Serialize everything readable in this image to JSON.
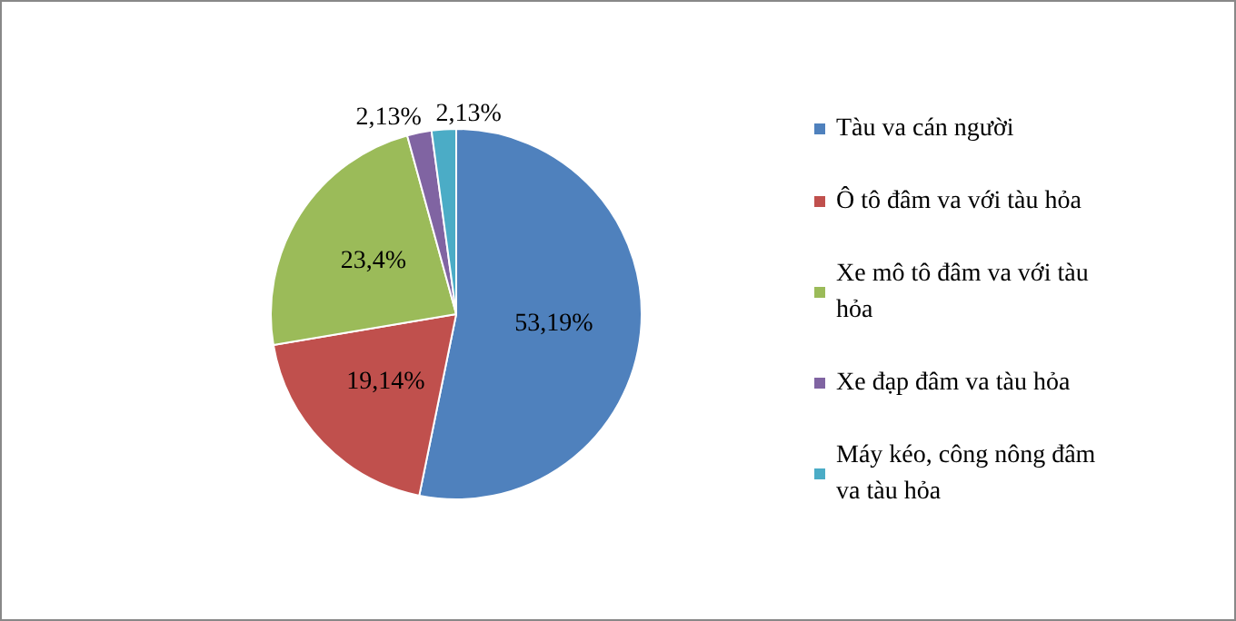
{
  "chart_data": {
    "type": "pie",
    "categories": [
      "Tàu va cán người",
      "Ô tô đâm va với tàu hỏa",
      "Xe mô tô đâm va với tàu hỏa",
      "Xe đạp đâm va tàu hỏa",
      "Máy kéo, công nông đâm va tàu hỏa"
    ],
    "values": [
      53.19,
      19.14,
      23.4,
      2.13,
      2.13
    ],
    "value_labels": [
      "53,19%",
      "19,14%",
      "23,4%",
      "2,13%",
      "2,13%"
    ],
    "colors": [
      "#4f81bd",
      "#c0504d",
      "#9bbb59",
      "#8064a2",
      "#4bacc6"
    ],
    "legend": "right"
  }
}
